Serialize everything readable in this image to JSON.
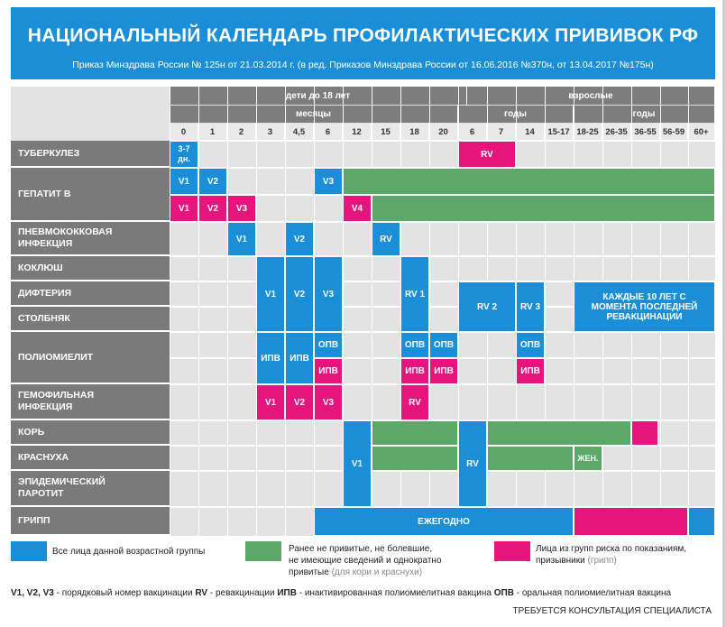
{
  "header": {
    "title": "НАЦИОНАЛЬНЫЙ КАЛЕНДАРЬ ПРОФИЛАКТИЧЕСКИХ ПРИВИВОК РФ",
    "subtitle": "Приказ Минздрава России № 125н от 21.03.2014 г.  (в ред. Приказов Минздрава России от 16.06.2016 №370н, от 13.04.2017 №175н)"
  },
  "age_header": {
    "children": "дети до 18 лет",
    "adults": "взрослые",
    "months": "месяцы",
    "years_children": "годы",
    "years_adults": "годы",
    "columns": [
      "0",
      "1",
      "2",
      "3",
      "4,5",
      "6",
      "12",
      "15",
      "18",
      "20",
      "6",
      "7",
      "14",
      "15-17",
      "18-25",
      "26-35",
      "36-55",
      "56-59",
      "60+"
    ]
  },
  "rows": {
    "tuberculosis": "ТУБЕРКУЛЕЗ",
    "hepatitis_b": "ГЕПАТИТ В",
    "pneumococcal": "ПНЕВМОКОККОВАЯ\nИНФЕКЦИЯ",
    "pertussis": "КОКЛЮШ",
    "diphtheria": "ДИФТЕРИЯ",
    "tetanus": "СТОЛБНЯК",
    "polio": "ПОЛИОМИЕЛИТ",
    "hib": "ГЕМОФИЛЬНАЯ\nИНФЕКЦИЯ",
    "measles": "КОРЬ",
    "rubella": "КРАСНУХА",
    "mumps": "ЭПИДЕМИЧЕСКИЙ\nПАРОТИТ",
    "flu": "ГРИПП"
  },
  "cells": {
    "tb_newborn": "3-7\nдн.",
    "tb_rv": "RV",
    "hepb_v1": "V1",
    "hepb_v2": "V2",
    "hepb_v3": "V3",
    "hepb_risk_v1": "V1",
    "hepb_risk_v2": "V2",
    "hepb_risk_v3": "V3",
    "hepb_risk_v4": "V4",
    "pneumo_v1": "V1",
    "pneumo_v2": "V2",
    "pneumo_rv": "RV",
    "dtp_v1": "V1",
    "dtp_v2": "V2",
    "dtp_v3": "V3",
    "dtp_rv1": "RV 1",
    "dtp_rv2": "RV 2",
    "dtp_rv3": "RV 3",
    "adult_dt": "КАЖДЫЕ 10 ЛЕТ С МОМЕНТА ПОСЛЕДНЕЙ РЕВАКЦИНАЦИИ",
    "polio_ipv1": "ИПВ",
    "polio_ipv2": "ИПВ",
    "polio_opv6": "ОПВ",
    "polio_ipv6": "ИПВ",
    "polio_opv18": "ОПВ",
    "polio_ipv18": "ИПВ",
    "polio_opv20": "ОПВ",
    "polio_ipv20": "ИПВ",
    "polio_opv14": "ОПВ",
    "polio_ipv14": "ИПВ",
    "hib_v1": "V1",
    "hib_v2": "V2",
    "hib_v3": "V3",
    "hib_rv": "RV",
    "mmr_v1": "V1",
    "mmr_rv": "RV",
    "rubella_women": "ЖЕН.",
    "flu_yearly": "ЕЖЕГОДНО"
  },
  "legend": {
    "blue": "Все лица данной возрастной группы",
    "green_line1": "Ранее не привитые, не болевшие,",
    "green_line2": "не имеющие сведений и однократно",
    "green_line3": "привитые",
    "green_note": "(для кори и краснухи)",
    "pink_line1": "Лица из групп риска по показаниям,",
    "pink_line2": "призывники",
    "pink_note": "(грипп)"
  },
  "abbreviations": {
    "v": "V1, V2, V3",
    "v_text": " - порядковый номер вакцинации ",
    "rv": "RV",
    "rv_text": " - ревакцинации ",
    "ipv": "ИПВ",
    "ipv_text": " - инактивированная полиомиелитная вакцина ",
    "opv": "ОПВ",
    "opv_text": " - оральная полиомиелитная вакцина"
  },
  "footer_note": "ТРЕБУЕТСЯ КОНСУЛЬТАЦИЯ СПЕЦИАЛИСТА",
  "colors": {
    "blue": "#1a8fd8",
    "green": "#5ba868",
    "pink": "#e6157d",
    "label_gray": "#7a7a7a"
  }
}
